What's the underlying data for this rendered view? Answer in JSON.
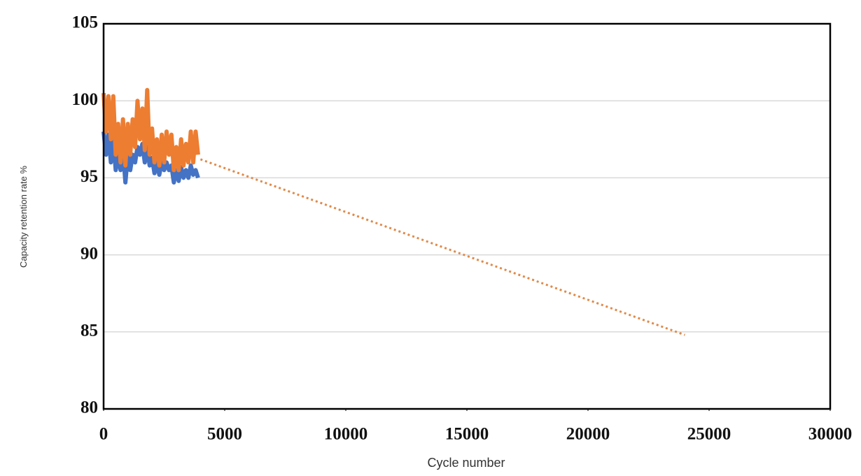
{
  "chart_data": {
    "type": "line",
    "x_label": "Cycle number",
    "y_label": "Capacity retention rate %",
    "xlim": [
      0,
      30000
    ],
    "xticks": [
      0,
      5000,
      10000,
      15000,
      20000,
      25000,
      30000
    ],
    "ylim": [
      80,
      105
    ],
    "yticks": [
      80,
      85,
      90,
      95,
      100,
      105
    ],
    "grid": true,
    "series": [
      {
        "color": "#4472c4",
        "style": "solid",
        "x": [
          0,
          100,
          200,
          300,
          400,
          500,
          600,
          700,
          800,
          900,
          1000,
          1100,
          1200,
          1300,
          1400,
          1500,
          1600,
          1700,
          1800,
          1900,
          2000,
          2100,
          2200,
          2300,
          2400,
          2500,
          2600,
          2700,
          2800,
          2900,
          3000,
          3100,
          3200,
          3300,
          3400,
          3500,
          3600,
          3700,
          3800,
          3900
        ],
        "values": [
          98,
          96.5,
          97.8,
          96,
          97.5,
          95.5,
          96.5,
          95.5,
          96.8,
          94.7,
          96.5,
          95.5,
          96.5,
          96,
          97,
          96.5,
          97.2,
          96,
          97,
          95.8,
          96.3,
          95.3,
          96,
          95.2,
          96,
          95.5,
          96,
          95.5,
          95.8,
          94.7,
          95.5,
          94.8,
          95.7,
          95,
          95.5,
          95,
          95.8,
          95.2,
          95.5,
          95
        ]
      },
      {
        "color": "#ed7d31",
        "style": "solid",
        "x": [
          0,
          100,
          200,
          300,
          400,
          500,
          600,
          700,
          800,
          900,
          1000,
          1100,
          1200,
          1300,
          1400,
          1500,
          1600,
          1700,
          1800,
          1900,
          2000,
          2100,
          2200,
          2300,
          2400,
          2500,
          2600,
          2700,
          2800,
          2900,
          3000,
          3100,
          3200,
          3300,
          3400,
          3500,
          3600,
          3700,
          3800,
          3900
        ],
        "values": [
          100.5,
          98,
          100.3,
          97.5,
          100.3,
          96.5,
          98.5,
          96,
          98.8,
          95.8,
          98.5,
          96.5,
          98.8,
          97,
          100,
          97.5,
          99.5,
          96.8,
          100.7,
          96.5,
          98.2,
          96,
          97.5,
          95.8,
          97.8,
          96,
          98,
          96.5,
          97.8,
          95.5,
          97,
          95.5,
          97.5,
          95.8,
          97.2,
          96,
          98,
          96,
          98,
          96.5
        ]
      },
      {
        "color": "#e08a4a",
        "style": "dotted",
        "x": [
          4000,
          24000
        ],
        "values": [
          96.2,
          84.8
        ]
      }
    ]
  }
}
